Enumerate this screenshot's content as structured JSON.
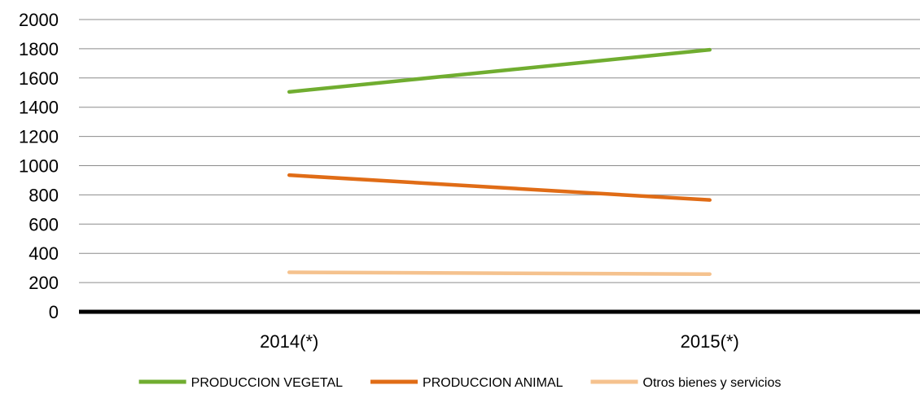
{
  "chart_data": {
    "type": "line",
    "categories": [
      "2014(*)",
      "2015(*)"
    ],
    "series": [
      {
        "name": "PRODUCCION VEGETAL",
        "values": [
          1505,
          1793
        ],
        "color": "#70AD30"
      },
      {
        "name": "PRODUCCION ANIMAL",
        "values": [
          935,
          765
        ],
        "color": "#E06C16"
      },
      {
        "name": "Otros bienes y servicios",
        "values": [
          270,
          258
        ],
        "color": "#F5C28E"
      }
    ],
    "ylim": [
      0,
      2000
    ],
    "yticks": [
      0,
      200,
      400,
      600,
      800,
      1000,
      1200,
      1400,
      1600,
      1800,
      2000
    ],
    "grid": true,
    "legend_position": "bottom",
    "title": "",
    "xlabel": "",
    "ylabel": ""
  }
}
